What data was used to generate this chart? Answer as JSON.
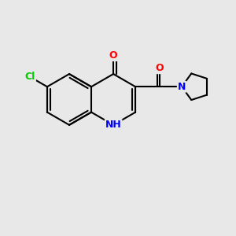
{
  "bg_color": "#e8e8e8",
  "bond_color": "#000000",
  "bond_width": 1.5,
  "atom_colors": {
    "O": "#ff0000",
    "N": "#0000ff",
    "Cl": "#00cc00",
    "C": "#000000"
  },
  "font_size": 9,
  "fig_size": [
    3.0,
    3.0
  ],
  "dpi": 100
}
